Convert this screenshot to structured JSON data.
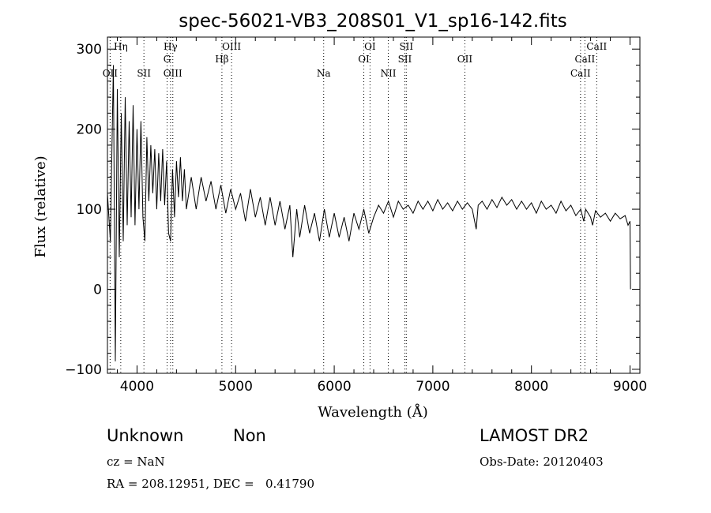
{
  "chart_data": {
    "type": "line",
    "title": "spec-56021-VB3_208S01_V1_sp16-142.fits",
    "xlabel": "Wavelength (Å)",
    "ylabel": "Flux (relative)",
    "xlim": [
      3700,
      9100
    ],
    "ylim": [
      -105,
      315
    ],
    "x_ticks": [
      4000,
      5000,
      6000,
      7000,
      8000,
      9000
    ],
    "y_ticks": [
      -100,
      0,
      100,
      200,
      300
    ],
    "grid": false,
    "series": [
      {
        "values": [
          [
            3700,
            120
          ],
          [
            3730,
            60
          ],
          [
            3760,
            280
          ],
          [
            3780,
            -90
          ],
          [
            3800,
            250
          ],
          [
            3820,
            40
          ],
          [
            3840,
            220
          ],
          [
            3860,
            60
          ],
          [
            3880,
            240
          ],
          [
            3900,
            80
          ],
          [
            3920,
            210
          ],
          [
            3940,
            90
          ],
          [
            3960,
            230
          ],
          [
            3980,
            80
          ],
          [
            4000,
            200
          ],
          [
            4020,
            100
          ],
          [
            4040,
            210
          ],
          [
            4060,
            90
          ],
          [
            4080,
            60
          ],
          [
            4100,
            190
          ],
          [
            4120,
            110
          ],
          [
            4140,
            180
          ],
          [
            4160,
            120
          ],
          [
            4180,
            175
          ],
          [
            4200,
            100
          ],
          [
            4220,
            170
          ],
          [
            4240,
            110
          ],
          [
            4260,
            175
          ],
          [
            4280,
            105
          ],
          [
            4300,
            160
          ],
          [
            4320,
            70
          ],
          [
            4340,
            60
          ],
          [
            4360,
            150
          ],
          [
            4380,
            90
          ],
          [
            4400,
            160
          ],
          [
            4420,
            115
          ],
          [
            4440,
            165
          ],
          [
            4460,
            110
          ],
          [
            4480,
            150
          ],
          [
            4500,
            100
          ],
          [
            4550,
            140
          ],
          [
            4600,
            100
          ],
          [
            4650,
            140
          ],
          [
            4700,
            110
          ],
          [
            4750,
            135
          ],
          [
            4800,
            100
          ],
          [
            4850,
            130
          ],
          [
            4900,
            95
          ],
          [
            4950,
            125
          ],
          [
            5000,
            100
          ],
          [
            5050,
            120
          ],
          [
            5100,
            85
          ],
          [
            5150,
            125
          ],
          [
            5200,
            90
          ],
          [
            5250,
            115
          ],
          [
            5300,
            80
          ],
          [
            5350,
            115
          ],
          [
            5400,
            80
          ],
          [
            5450,
            110
          ],
          [
            5500,
            75
          ],
          [
            5550,
            105
          ],
          [
            5580,
            40
          ],
          [
            5620,
            100
          ],
          [
            5650,
            65
          ],
          [
            5700,
            105
          ],
          [
            5750,
            70
          ],
          [
            5800,
            95
          ],
          [
            5850,
            60
          ],
          [
            5900,
            100
          ],
          [
            5950,
            65
          ],
          [
            6000,
            95
          ],
          [
            6050,
            65
          ],
          [
            6100,
            90
          ],
          [
            6150,
            60
          ],
          [
            6200,
            95
          ],
          [
            6250,
            75
          ],
          [
            6300,
            100
          ],
          [
            6350,
            70
          ],
          [
            6400,
            90
          ],
          [
            6450,
            105
          ],
          [
            6500,
            95
          ],
          [
            6550,
            110
          ],
          [
            6600,
            90
          ],
          [
            6650,
            110
          ],
          [
            6700,
            100
          ],
          [
            6750,
            105
          ],
          [
            6800,
            95
          ],
          [
            6850,
            110
          ],
          [
            6900,
            100
          ],
          [
            6950,
            110
          ],
          [
            7000,
            98
          ],
          [
            7050,
            112
          ],
          [
            7100,
            100
          ],
          [
            7150,
            108
          ],
          [
            7200,
            98
          ],
          [
            7250,
            110
          ],
          [
            7300,
            100
          ],
          [
            7350,
            108
          ],
          [
            7400,
            100
          ],
          [
            7440,
            75
          ],
          [
            7460,
            105
          ],
          [
            7500,
            110
          ],
          [
            7550,
            100
          ],
          [
            7600,
            112
          ],
          [
            7650,
            102
          ],
          [
            7700,
            115
          ],
          [
            7750,
            105
          ],
          [
            7800,
            112
          ],
          [
            7850,
            100
          ],
          [
            7900,
            110
          ],
          [
            7950,
            100
          ],
          [
            8000,
            108
          ],
          [
            8050,
            95
          ],
          [
            8100,
            110
          ],
          [
            8150,
            100
          ],
          [
            8200,
            105
          ],
          [
            8250,
            95
          ],
          [
            8300,
            110
          ],
          [
            8350,
            98
          ],
          [
            8400,
            105
          ],
          [
            8450,
            92
          ],
          [
            8500,
            100
          ],
          [
            8530,
            85
          ],
          [
            8550,
            100
          ],
          [
            8600,
            90
          ],
          [
            8620,
            80
          ],
          [
            8650,
            98
          ],
          [
            8700,
            90
          ],
          [
            8750,
            95
          ],
          [
            8800,
            85
          ],
          [
            8850,
            95
          ],
          [
            8900,
            88
          ],
          [
            8950,
            92
          ],
          [
            8980,
            80
          ],
          [
            9000,
            85
          ],
          [
            9005,
            0
          ]
        ]
      }
    ],
    "annotations": [
      {
        "label": "OII",
        "x": 3727,
        "row": 3
      },
      {
        "label": "Hη",
        "x": 3835,
        "row": 1
      },
      {
        "label": "SII",
        "x": 4070,
        "row": 3
      },
      {
        "label": "Hγ",
        "x": 4340,
        "row": 1
      },
      {
        "label": "G",
        "x": 4305,
        "row": 2
      },
      {
        "label": "OIII",
        "x": 4363,
        "row": 3
      },
      {
        "label": "OIII",
        "x": 4959,
        "row": 1
      },
      {
        "label": "Hβ",
        "x": 4861,
        "row": 2
      },
      {
        "label": "Na",
        "x": 5893,
        "row": 3
      },
      {
        "label": "OI",
        "x": 6363,
        "row": 1
      },
      {
        "label": "OI",
        "x": 6300,
        "row": 2
      },
      {
        "label": "NII",
        "x": 6548,
        "row": 3
      },
      {
        "label": "SII",
        "x": 6731,
        "row": 1
      },
      {
        "label": "SII",
        "x": 6716,
        "row": 2
      },
      {
        "label": "OII",
        "x": 7325,
        "row": 2
      },
      {
        "label": "CaII",
        "x": 8662,
        "row": 1
      },
      {
        "label": "CaII",
        "x": 8542,
        "row": 2
      },
      {
        "label": "CaII",
        "x": 8498,
        "row": 3
      }
    ]
  },
  "info": {
    "class": "Unknown",
    "subclass": "Non",
    "cz": "cz = NaN",
    "radec": "RA = 208.12951, DEC =   0.41790",
    "release": "LAMOST DR2",
    "obsdate": "Obs-Date: 20120403"
  }
}
